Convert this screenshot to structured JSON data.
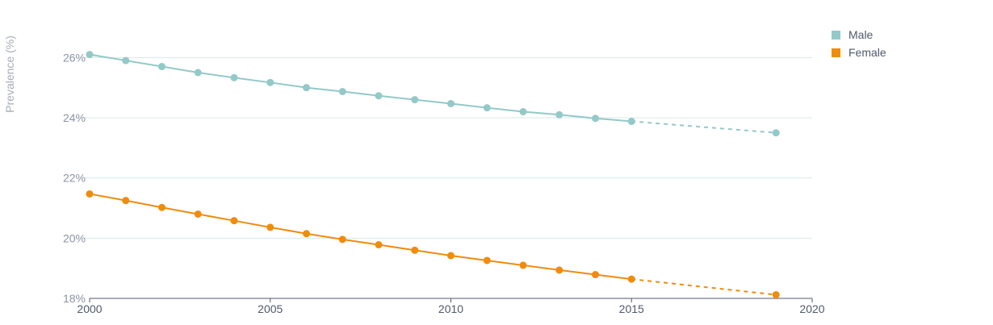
{
  "chart_data": {
    "type": "line",
    "title": "",
    "xlabel": "",
    "ylabel": "Prevalence (%)",
    "xlim": [
      2000,
      2020
    ],
    "ylim": [
      18,
      27
    ],
    "x_ticks": [
      "2000",
      "2005",
      "2010",
      "2015",
      "2020"
    ],
    "y_ticks": [
      "18%",
      "20%",
      "22%",
      "24%",
      "26%"
    ],
    "grid": true,
    "legend_position": "top-right",
    "series": [
      {
        "name": "Male",
        "color": "#93c9c8",
        "x": [
          2000,
          2001,
          2002,
          2003,
          2004,
          2005,
          2006,
          2007,
          2008,
          2009,
          2010,
          2011,
          2012,
          2013,
          2014,
          2015,
          2019
        ],
        "values": [
          26.1,
          25.9,
          25.7,
          25.5,
          25.33,
          25.17,
          25.0,
          24.87,
          24.73,
          24.6,
          24.47,
          24.33,
          24.2,
          24.1,
          23.98,
          23.88,
          23.5
        ],
        "projected_from": 2015
      },
      {
        "name": "Female",
        "color": "#ef8c0d",
        "x": [
          2000,
          2001,
          2002,
          2003,
          2004,
          2005,
          2006,
          2007,
          2008,
          2009,
          2010,
          2011,
          2012,
          2013,
          2014,
          2015,
          2019
        ],
        "values": [
          21.47,
          21.25,
          21.02,
          20.8,
          20.58,
          20.36,
          20.15,
          19.96,
          19.78,
          19.6,
          19.42,
          19.26,
          19.1,
          18.94,
          18.79,
          18.64,
          18.12
        ],
        "projected_from": 2015
      }
    ]
  }
}
